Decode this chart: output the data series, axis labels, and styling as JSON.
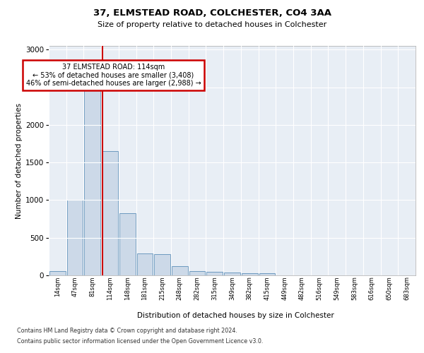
{
  "title1": "37, ELMSTEAD ROAD, COLCHESTER, CO4 3AA",
  "title2": "Size of property relative to detached houses in Colchester",
  "xlabel": "Distribution of detached houses by size in Colchester",
  "ylabel": "Number of detached properties",
  "footnote1": "Contains HM Land Registry data © Crown copyright and database right 2024.",
  "footnote2": "Contains public sector information licensed under the Open Government Licence v3.0.",
  "categories": [
    "14sqm",
    "47sqm",
    "81sqm",
    "114sqm",
    "148sqm",
    "181sqm",
    "215sqm",
    "248sqm",
    "282sqm",
    "315sqm",
    "349sqm",
    "382sqm",
    "415sqm",
    "449sqm",
    "482sqm",
    "516sqm",
    "549sqm",
    "583sqm",
    "616sqm",
    "650sqm",
    "683sqm"
  ],
  "values": [
    55,
    1000,
    2470,
    1650,
    830,
    290,
    285,
    120,
    55,
    50,
    35,
    25,
    30,
    0,
    0,
    0,
    0,
    0,
    0,
    0,
    0
  ],
  "bar_color": "#ccd9e8",
  "bar_edge_color": "#5b8db8",
  "vline_color": "#cc0000",
  "vline_index": 2.57,
  "annotation_line1": "37 ELMSTEAD ROAD: 114sqm",
  "annotation_line2": "← 53% of detached houses are smaller (3,408)",
  "annotation_line3": "46% of semi-detached houses are larger (2,988) →",
  "annotation_box_color": "#ffffff",
  "annotation_box_edge": "#cc0000",
  "ylim": [
    0,
    3050
  ],
  "yticks": [
    0,
    500,
    1000,
    1500,
    2000,
    2500,
    3000
  ],
  "plot_bg_color": "#e8eef5"
}
